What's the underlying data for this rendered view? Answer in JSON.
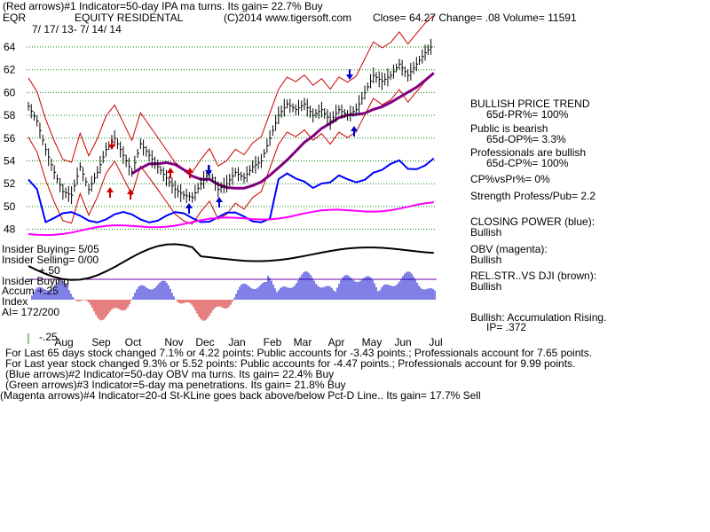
{
  "header": {
    "line1": "(Red arrows)#1 Indicator=50-day IPA ma turns. Its gain= 22.7% Buy",
    "symbol": "EQR",
    "name": "EQUITY RESIDENTAL",
    "copyright": "(C)2014 www.tigersoft.com",
    "close": "Close=  64.27  Change= .08 Volume= 11591",
    "dates": "7/ 17/ 13- 7/ 14/ 14"
  },
  "right_panel": {
    "trend_title": "BULLISH PRICE TREND",
    "pr": "65d-PR%= 100%",
    "public": "Public is bearish",
    "op": "65d-OP%= 3.3%",
    "pros": "Professionals are bullish",
    "cp": "65d-CP%= 100%",
    "cpvs": "CP%vsPr%=  0%",
    "strength": "Strength Profess/Pub= 2.2",
    "closing_power": "CLOSING POWER (blue):",
    "closing_power_val": "Bullish",
    "obv": "OBV (magenta):",
    "obv_val": "Bullish",
    "relstr": "REL.STR..VS DJI (brown):",
    "relstr_val": "Bullish",
    "accum": "Bullish: Accumulation Rising.",
    "ip": "IP=  .372"
  },
  "left_labels": {
    "insider_buying1": "Insider Buying= 5/05",
    "insider_selling": "Insider Selling= 0/00",
    "insider_buying2": "Insider Buying",
    "accum": "Accum  +.25",
    "index": "Index",
    "ai": "AI= 172/200",
    "minus25": "-.25",
    "plus50": "+.50"
  },
  "footer": {
    "line1": "For Last 65 days stock changed  7.1% or  4.22 points:  Public accounts for -3.43 points.;  Professionals account for  7.65 points.",
    "line2": "For Last year stock changed  9.3% or  5.52 points:  Public accounts for -4.47 points.;  Professionals account for  9.99 points.",
    "line3": "(Blue arrows)#2 Indicator=50-day OBV ma turns. Its gain= 22.4% Buy",
    "line4": "(Green arrows)#3 Indicator=5-day ma penetrations. Its gain= 21.8% Buy",
    "line5": "(Magenta arrows)#4 Indicator=20-d St-KLine goes back above/below Pct-D Line.. Its gain= 17.7% Sell"
  },
  "colors": {
    "price": "#000000",
    "band": "#cc0000",
    "ma": "#800080",
    "closing_power": "#0000ff",
    "obv": "#ff00ff",
    "grid": "#008000",
    "accum_pos": "#0000cc",
    "accum_neg": "#cc0000",
    "relstr": "#000000"
  },
  "chart_data": {
    "type": "line",
    "title": "EQUITY RESIDENTAL",
    "xlabel": "",
    "ylabel": "",
    "ylim": [
      47,
      65
    ],
    "y_ticks": [
      48,
      50,
      52,
      54,
      56,
      58,
      60,
      62,
      64
    ],
    "months": [
      "Aug",
      "Sep",
      "Oct",
      "Nov",
      "Dec",
      "Jan",
      "Feb",
      "Mar",
      "Apr",
      "May",
      "Jun",
      "Jul"
    ],
    "close_series": [
      {
        "m": 0.0,
        "v": 58.8
      },
      {
        "m": 0.3,
        "v": 57.5
      },
      {
        "m": 0.6,
        "v": 55.0
      },
      {
        "m": 0.9,
        "v": 53.0
      },
      {
        "m": 1.2,
        "v": 51.3
      },
      {
        "m": 1.5,
        "v": 51.0
      },
      {
        "m": 1.8,
        "v": 53.5
      },
      {
        "m": 2.1,
        "v": 51.5
      },
      {
        "m": 2.4,
        "v": 53.0
      },
      {
        "m": 2.7,
        "v": 55.0
      },
      {
        "m": 3.0,
        "v": 56.0
      },
      {
        "m": 3.3,
        "v": 54.5
      },
      {
        "m": 3.6,
        "v": 53.0
      },
      {
        "m": 3.9,
        "v": 55.5
      },
      {
        "m": 4.2,
        "v": 54.5
      },
      {
        "m": 4.5,
        "v": 53.5
      },
      {
        "m": 4.8,
        "v": 52.5
      },
      {
        "m": 5.1,
        "v": 51.5
      },
      {
        "m": 5.4,
        "v": 51.0
      },
      {
        "m": 5.7,
        "v": 50.8
      },
      {
        "m": 6.0,
        "v": 52.0
      },
      {
        "m": 6.3,
        "v": 53.0
      },
      {
        "m": 6.6,
        "v": 51.5
      },
      {
        "m": 6.9,
        "v": 52.0
      },
      {
        "m": 7.2,
        "v": 53.0
      },
      {
        "m": 7.5,
        "v": 52.5
      },
      {
        "m": 7.8,
        "v": 53.5
      },
      {
        "m": 8.1,
        "v": 54.0
      },
      {
        "m": 8.4,
        "v": 56.0
      },
      {
        "m": 8.7,
        "v": 58.0
      },
      {
        "m": 9.0,
        "v": 59.0
      },
      {
        "m": 9.3,
        "v": 58.5
      },
      {
        "m": 9.6,
        "v": 59.0
      },
      {
        "m": 9.9,
        "v": 58.0
      },
      {
        "m": 10.2,
        "v": 58.5
      },
      {
        "m": 10.5,
        "v": 57.5
      },
      {
        "m": 10.8,
        "v": 58.5
      },
      {
        "m": 11.1,
        "v": 58.0
      },
      {
        "m": 11.4,
        "v": 58.5
      },
      {
        "m": 11.7,
        "v": 60.0
      },
      {
        "m": 12.0,
        "v": 61.5
      },
      {
        "m": 12.3,
        "v": 61.0
      },
      {
        "m": 12.6,
        "v": 61.5
      },
      {
        "m": 12.9,
        "v": 62.5
      },
      {
        "m": 13.2,
        "v": 61.5
      },
      {
        "m": 13.5,
        "v": 62.5
      },
      {
        "m": 13.8,
        "v": 63.5
      },
      {
        "m": 14.1,
        "v": 64.27
      }
    ]
  }
}
